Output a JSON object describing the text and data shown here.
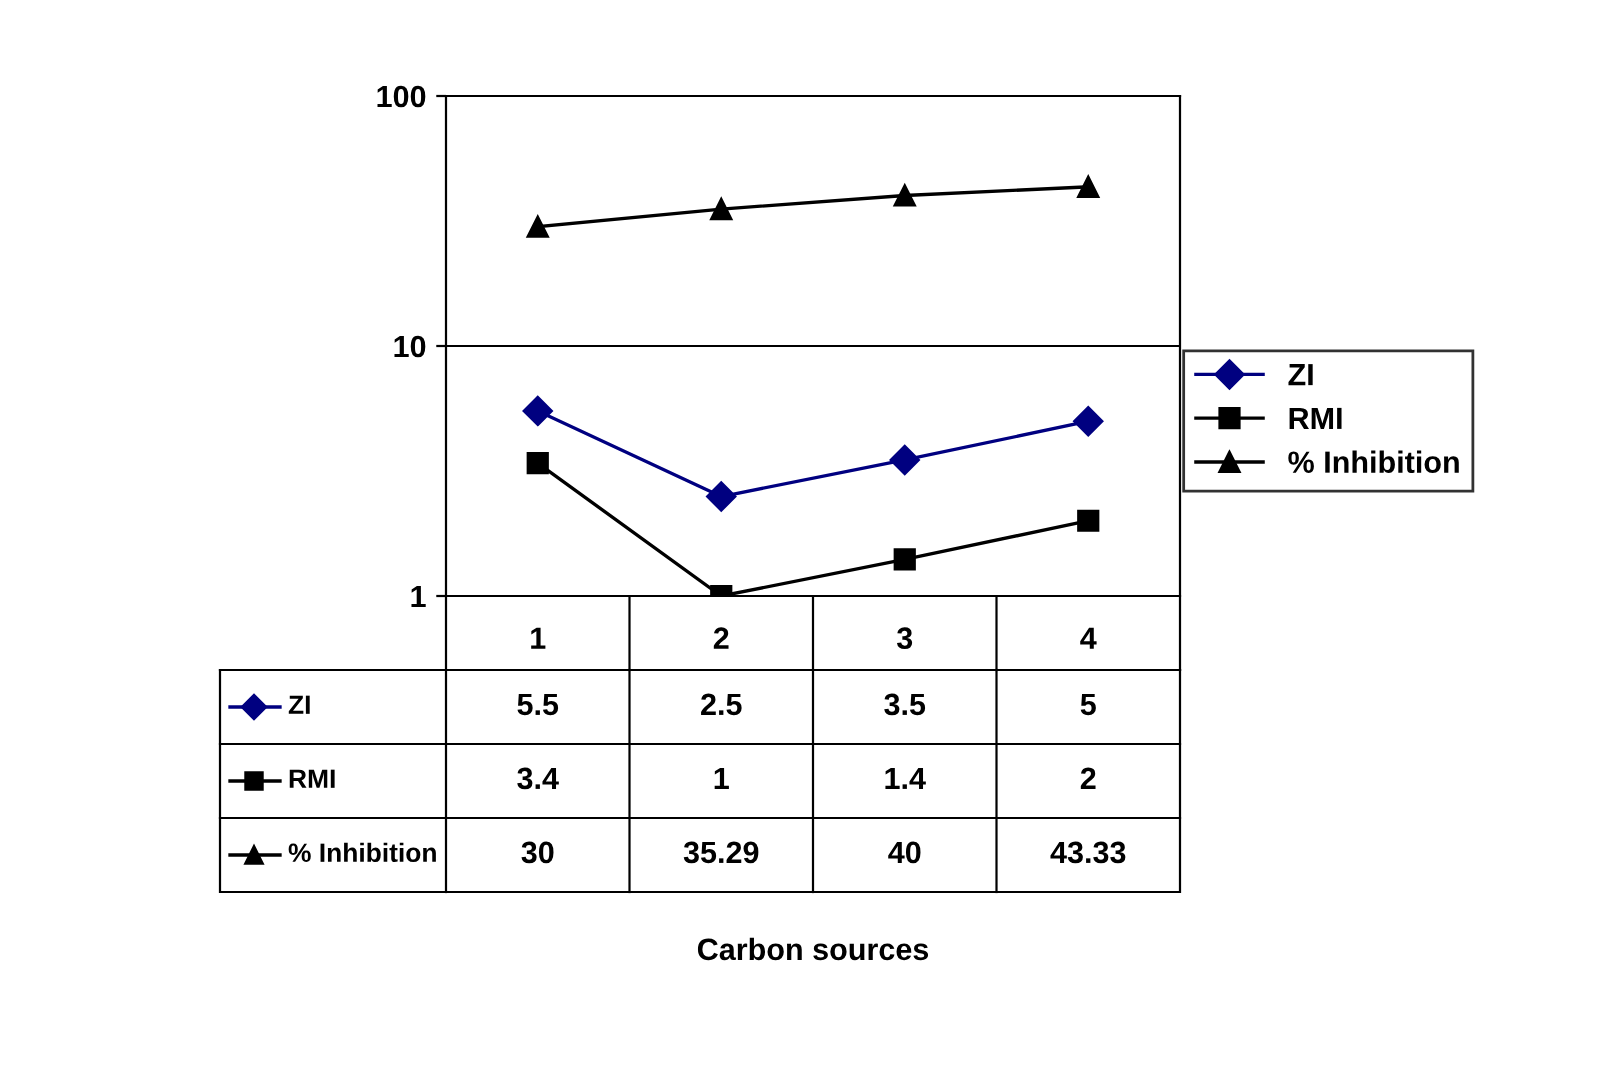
{
  "chart_data": {
    "type": "line",
    "annotations": [
      "Carbon sources"
    ],
    "categories": [
      "1",
      "2",
      "3",
      "4"
    ],
    "series": [
      {
        "name": "ZI",
        "color": "#000080",
        "marker": "diamond",
        "values": [
          5.5,
          2.5,
          3.5,
          5
        ]
      },
      {
        "name": "RMI",
        "color": "#000000",
        "marker": "square",
        "values": [
          3.4,
          1,
          1.4,
          2
        ]
      },
      {
        "name": "% Inhibition",
        "color": "#000000",
        "marker": "triangle",
        "values": [
          30,
          35.29,
          40,
          43.33
        ]
      }
    ],
    "log": "y",
    "ylim": [
      1,
      100
    ],
    "yticks": [
      1,
      10,
      100
    ],
    "grid": "y",
    "legend": "right",
    "data_labels": true
  }
}
